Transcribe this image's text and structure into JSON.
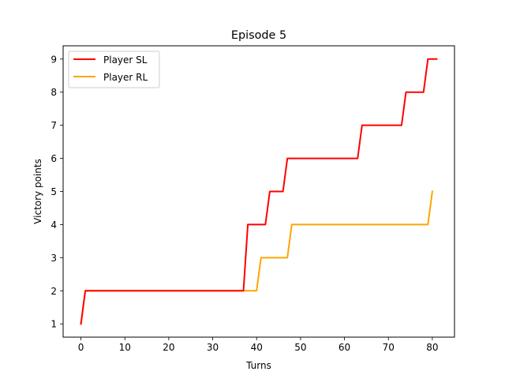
{
  "chart_data": {
    "type": "line",
    "title": "Episode 5",
    "xlabel": "Turns",
    "ylabel": "Victory points",
    "xlim": [
      -4.05,
      85.05
    ],
    "ylim": [
      0.6,
      9.4
    ],
    "xticks": [
      0,
      10,
      20,
      30,
      40,
      50,
      60,
      70,
      80
    ],
    "yticks": [
      1,
      2,
      3,
      4,
      5,
      6,
      7,
      8,
      9
    ],
    "grid": false,
    "legend_position": "top-left",
    "series": [
      {
        "name": "Player SL",
        "color": "#ff0000",
        "points": [
          [
            0,
            1
          ],
          [
            1,
            2
          ],
          [
            37,
            2
          ],
          [
            38,
            4
          ],
          [
            42,
            4
          ],
          [
            43,
            5
          ],
          [
            46,
            5
          ],
          [
            47,
            6
          ],
          [
            63,
            6
          ],
          [
            64,
            7
          ],
          [
            73,
            7
          ],
          [
            74,
            8
          ],
          [
            78,
            8
          ],
          [
            79,
            9
          ],
          [
            81,
            9
          ]
        ]
      },
      {
        "name": "Player RL",
        "color": "#ffa500",
        "points": [
          [
            0,
            1
          ],
          [
            1,
            2
          ],
          [
            40,
            2
          ],
          [
            41,
            3
          ],
          [
            47,
            3
          ],
          [
            48,
            4
          ],
          [
            79,
            4
          ],
          [
            80,
            5
          ]
        ]
      }
    ]
  }
}
